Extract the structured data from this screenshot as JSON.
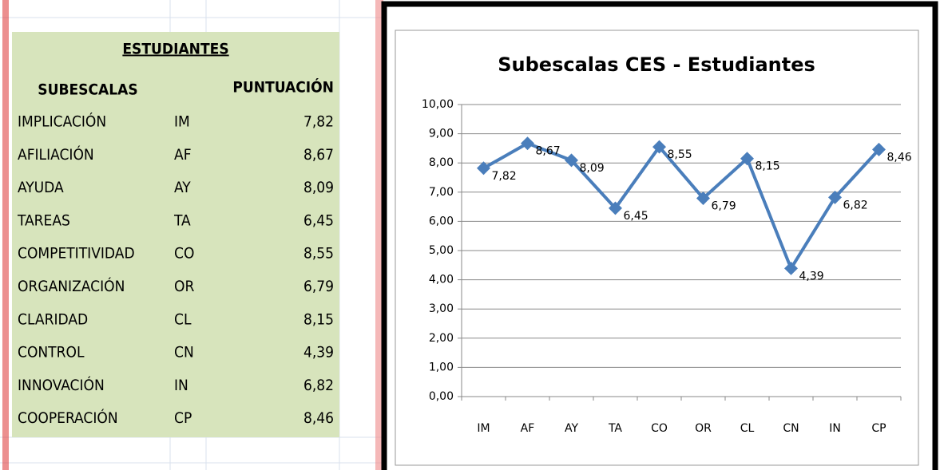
{
  "table": {
    "title": "ESTUDIANTES",
    "headers": [
      "SUBESCALAS",
      "PUNTUACIÓN"
    ],
    "rows": [
      [
        "IMPLICACIÓN",
        "IM",
        "7,82"
      ],
      [
        "AFILIACIÓN",
        "AF",
        "8,67"
      ],
      [
        "AYUDA",
        "AY",
        "8,09"
      ],
      [
        "TAREAS",
        "TA",
        "6,45"
      ],
      [
        "COMPETITIVIDAD",
        "CO",
        "8,55"
      ],
      [
        "ORGANIZACIÓN",
        "OR",
        "6,79"
      ],
      [
        "CLARIDAD",
        "CL",
        "8,15"
      ],
      [
        "CONTROL",
        "CN",
        "4,39"
      ],
      [
        "INNOVACIÓN",
        "IN",
        "6,82"
      ],
      [
        "COOPERACIÓN",
        "CP",
        "8,46"
      ]
    ]
  },
  "chart_data": {
    "type": "line",
    "title": "Subescalas CES - Estudiantes",
    "categories": [
      "IM",
      "AF",
      "AY",
      "TA",
      "CO",
      "OR",
      "CL",
      "CN",
      "IN",
      "CP"
    ],
    "series": [
      {
        "color": "#4a7ebb",
        "values": [
          7.82,
          8.67,
          8.09,
          6.45,
          8.55,
          6.79,
          8.15,
          4.39,
          6.82,
          8.46
        ],
        "value_labels": [
          "7,82",
          "8,67",
          "8,09",
          "6,45",
          "8,55",
          "6,79",
          "8,15",
          "4,39",
          "6,82",
          "8,46"
        ]
      }
    ],
    "ylim": [
      0,
      10
    ],
    "yticks": [
      {
        "value": 0,
        "label": "0,00"
      },
      {
        "value": 1,
        "label": "1,00"
      },
      {
        "value": 2,
        "label": "2,00"
      },
      {
        "value": 3,
        "label": "3,00"
      },
      {
        "value": 4,
        "label": "4,00"
      },
      {
        "value": 5,
        "label": "5,00"
      },
      {
        "value": 6,
        "label": "6,00"
      },
      {
        "value": 7,
        "label": "7,00"
      },
      {
        "value": 8,
        "label": "8,00"
      },
      {
        "value": 9,
        "label": "9,00"
      },
      {
        "value": 10,
        "label": "10,00"
      }
    ],
    "grid": true
  }
}
